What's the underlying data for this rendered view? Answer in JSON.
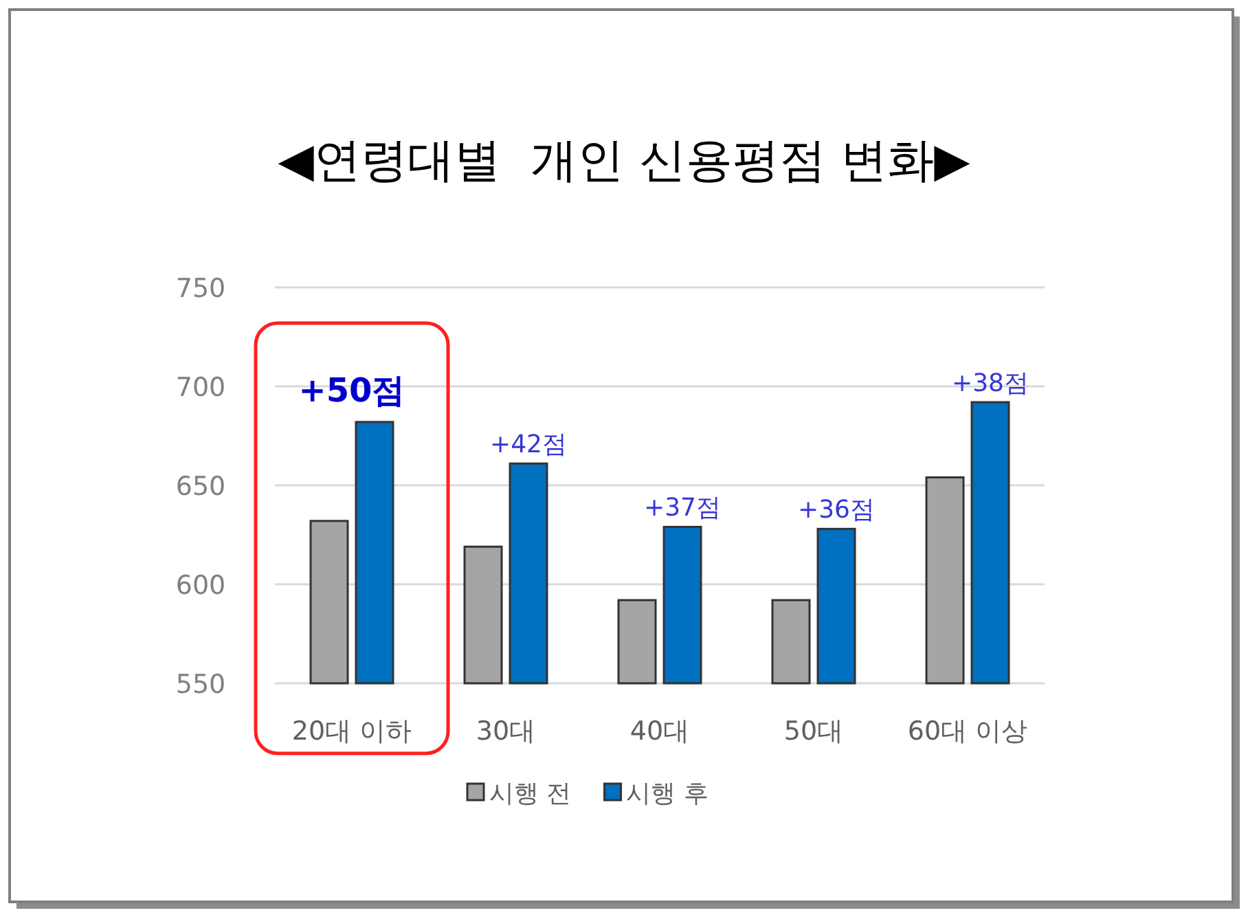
{
  "chart_data": {
    "type": "bar",
    "title": "◀연령대별  개인 신용평점 변화▶",
    "categories": [
      "20대 이하",
      "30대",
      "40대",
      "50대",
      "60대 이상"
    ],
    "series": [
      {
        "name": "시행 전",
        "color": "#a5a5a5",
        "values": [
          632,
          619,
          592,
          592,
          654
        ]
      },
      {
        "name": "시행 후",
        "color": "#0070c0",
        "values": [
          682,
          661,
          629,
          628,
          692
        ]
      }
    ],
    "ylim": [
      550,
      750
    ],
    "yticks": [
      550,
      600,
      650,
      700,
      750
    ],
    "grid": "y",
    "legend": "bottom",
    "annotations": [
      {
        "text": "+50점",
        "x": "20대 이하",
        "y": 682
      },
      {
        "text": "+42점",
        "x": "30대",
        "y": 661
      },
      {
        "text": "+37점",
        "x": "40대",
        "y": 629
      },
      {
        "text": "+36점",
        "x": "50대",
        "y": 628
      },
      {
        "text": "+38점",
        "x": "60대 이상",
        "y": 692
      }
    ]
  }
}
